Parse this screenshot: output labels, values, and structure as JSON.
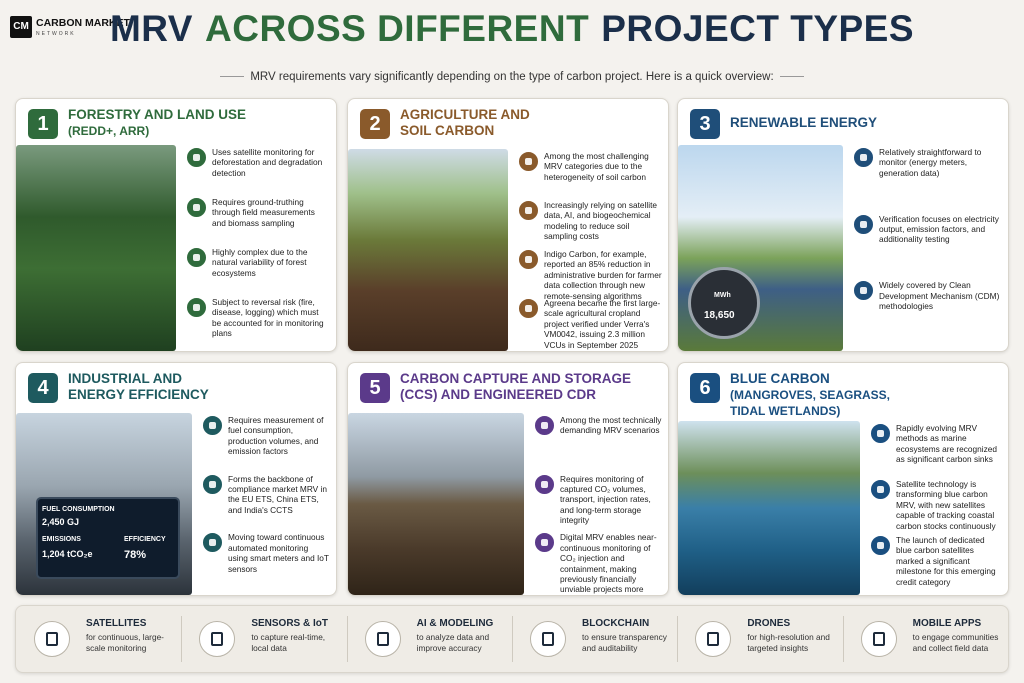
{
  "header": {
    "logo_mark": "CM",
    "logo_text": "CARBON MARKET",
    "logo_sub": "NETWORK",
    "title_parts": [
      "MRV",
      "ACROSS DIFFERENT",
      "PROJECT TYPES"
    ],
    "subtitle": "MRV requirements vary significantly depending on the type of carbon project. Here is a quick overview:"
  },
  "cards": [
    {
      "number": "1",
      "title_lines": [
        "FORESTRY AND LAND USE",
        "(REDD+, ARR)"
      ],
      "bullets": [
        "Uses satellite monitoring for deforestation and degradation detection",
        "Requires ground-truthing through field measurements and biomass sampling",
        "Highly complex due to the natural variability of forest ecosystems",
        "Subject to reversal risk (fire, disease, logging) which must be accounted for in monitoring plans"
      ],
      "image_labels": []
    },
    {
      "number": "2",
      "title_lines": [
        "AGRICULTURE AND",
        "SOIL CARBON"
      ],
      "bullets": [
        "Among the most challenging MRV categories due to the heterogeneity of soil carbon",
        "Increasingly relying on satellite data, AI, and biogeochemical modeling to reduce soil sampling costs",
        "Indigo Carbon, for example, reported an 85% reduction in administrative burden for farmer data collection through new remote-sensing algorithms",
        "Agreena became the first large-scale agricultural cropland project verified under Verra's VM0042, issuing 2.3 million VCUs in September 2025"
      ],
      "image_labels": []
    },
    {
      "number": "3",
      "title_lines": [
        "RENEWABLE ENERGY"
      ],
      "bullets": [
        "Relatively straightforward to monitor (energy meters, generation data)",
        "Verification focuses on electricity output, emission factors, and additionality testing",
        "Widely covered by Clean Development Mechanism (CDM) methodologies"
      ],
      "image_labels": [
        "MWh",
        "18,650"
      ]
    },
    {
      "number": "4",
      "title_lines": [
        "INDUSTRIAL AND",
        "ENERGY EFFICIENCY"
      ],
      "bullets": [
        "Requires measurement of fuel consumption, production volumes, and emission factors",
        "Forms the backbone of compliance market MRV in the EU ETS, China ETS, and India's CCTS",
        "Moving toward continuous automated monitoring using smart meters and IoT sensors"
      ],
      "image_labels": [
        "FUEL CONSUMPTION",
        "2,450 GJ",
        "EMISSIONS",
        "1,204 tCO₂e",
        "EFFICIENCY",
        "78%"
      ]
    },
    {
      "number": "5",
      "title_lines": [
        "CARBON CAPTURE AND STORAGE",
        "(CCS) AND ENGINEERED CDR"
      ],
      "bullets": [
        "Among the most technically demanding MRV scenarios",
        "Requires monitoring of captured CO₂ volumes, transport, injection rates, and long-term storage integrity",
        "Digital MRV enables near-continuous monitoring of CO₂ injection and containment, making previously financially unviable projects more attractive to investors"
      ],
      "image_labels": []
    },
    {
      "number": "6",
      "title_lines": [
        "BLUE CARBON",
        "(MANGROVES, SEAGRASS,",
        "TIDAL WETLANDS)"
      ],
      "bullets": [
        "Rapidly evolving MRV methods as marine ecosystems are recognized as significant carbon sinks",
        "Satellite technology is transforming blue carbon MRV, with new satellites capable of tracking coastal carbon stocks continuously",
        "The launch of dedicated blue carbon satellites marked a significant milestone for this emerging credit category"
      ],
      "image_labels": []
    }
  ],
  "tools": [
    {
      "title": "SATELLITES",
      "desc": "for continuous, large-scale monitoring"
    },
    {
      "title": "SENSORS & IoT",
      "desc": "to capture real-time, local data"
    },
    {
      "title": "AI & MODELING",
      "desc": "to analyze data and improve accuracy"
    },
    {
      "title": "BLOCKCHAIN",
      "desc": "to ensure transparency and auditability"
    },
    {
      "title": "DRONES",
      "desc": "for high-resolution and targeted insights"
    },
    {
      "title": "MOBILE APPS",
      "desc": "to engage communities and collect field data"
    }
  ]
}
